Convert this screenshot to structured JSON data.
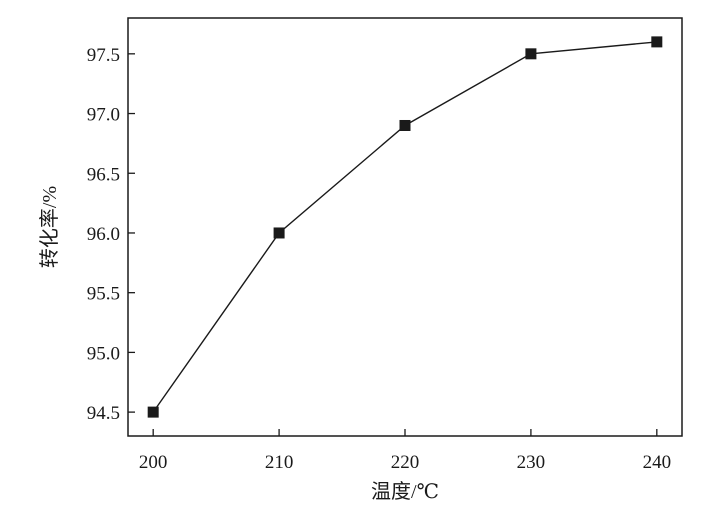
{
  "chart_data": {
    "type": "line",
    "xlabel": "温度/℃",
    "ylabel": "转化率/%",
    "x": [
      200,
      210,
      220,
      230,
      240
    ],
    "series": [
      {
        "values": [
          94.5,
          96.0,
          96.9,
          97.5,
          97.6
        ]
      }
    ],
    "xlim": [
      198,
      242
    ],
    "ylim": [
      94.3,
      97.8
    ],
    "xticks": [
      200,
      210,
      220,
      230,
      240
    ],
    "yticks": [
      94.5,
      95.0,
      95.5,
      96.0,
      96.5,
      97.0,
      97.5
    ],
    "xtick_labels": [
      "200",
      "210",
      "220",
      "230",
      "240"
    ],
    "ytick_labels": [
      "94.5",
      "95.0",
      "95.5",
      "96.0",
      "96.5",
      "97.0",
      "97.5"
    ],
    "marker": "square",
    "line_color": "#1a1a1a",
    "grid": false,
    "legend": false
  }
}
